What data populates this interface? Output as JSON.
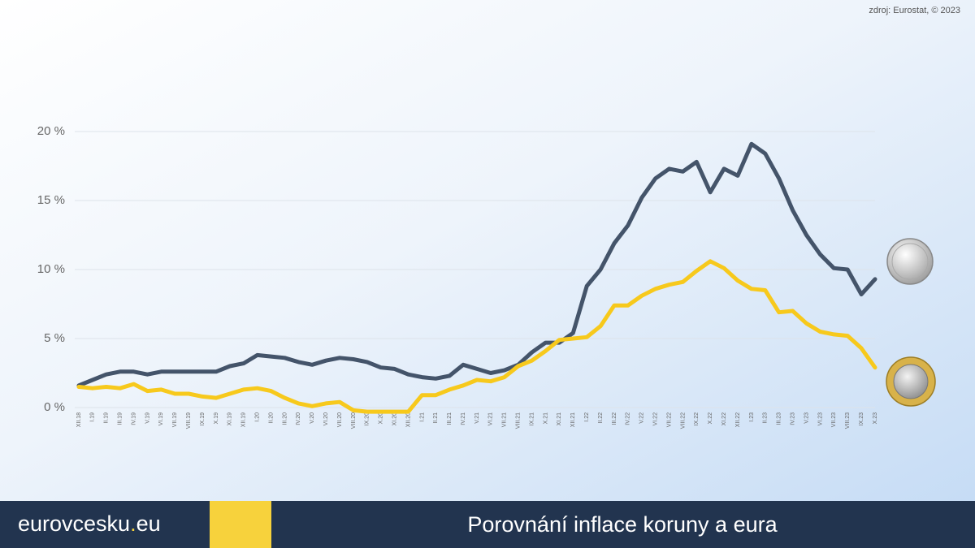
{
  "source": "zdroj: Eurostat, © 2023",
  "footer": {
    "brand": [
      "eurovcesku",
      ".",
      "eu"
    ],
    "title": "Porovnání inflace koruny a eura"
  },
  "chart_data": {
    "type": "line",
    "categories": [
      "XII.18",
      "I.19",
      "II.19",
      "III.19",
      "IV.19",
      "V.19",
      "VI.19",
      "VII.19",
      "VIII.19",
      "IX.19",
      "X.19",
      "XI.19",
      "XII.19",
      "I.20",
      "II.20",
      "III.20",
      "IV.20",
      "V.20",
      "VI.20",
      "VII.20",
      "VIII.20",
      "IX.20",
      "X.20",
      "XI.20",
      "XII.20",
      "I.21",
      "II.21",
      "III.21",
      "IV.21",
      "V.21",
      "VI.21",
      "VII.21",
      "VIII.21",
      "IX.21",
      "X.21",
      "XI.21",
      "XII.21",
      "I.22",
      "II.22",
      "III.22",
      "IV.22",
      "V.22",
      "VI.22",
      "VII.22",
      "VIII.22",
      "IX.22",
      "X.22",
      "XI.22",
      "XII.22",
      "I.23",
      "II.23",
      "III.23",
      "IV.23",
      "V.23",
      "VI.23",
      "VII.23",
      "VIII.23",
      "IX.23",
      "X.23"
    ],
    "series": [
      {
        "color": "#44546a",
        "values": [
          1.6,
          2.0,
          2.4,
          2.6,
          2.6,
          2.4,
          2.6,
          2.6,
          2.6,
          2.6,
          2.6,
          3.0,
          3.2,
          3.8,
          3.7,
          3.6,
          3.3,
          3.1,
          3.4,
          3.6,
          3.5,
          3.3,
          2.9,
          2.8,
          2.4,
          2.2,
          2.1,
          2.3,
          3.1,
          2.8,
          2.5,
          2.7,
          3.1,
          4.0,
          4.7,
          4.7,
          5.4,
          8.8,
          10.0,
          11.9,
          13.2,
          15.2,
          16.6,
          17.3,
          17.1,
          17.8,
          15.6,
          17.3,
          16.8,
          19.1,
          18.4,
          16.6,
          14.3,
          12.5,
          11.1,
          10.1,
          10.0,
          8.2,
          9.3
        ]
      },
      {
        "color": "#f7c91c",
        "values": [
          1.5,
          1.4,
          1.5,
          1.4,
          1.7,
          1.2,
          1.3,
          1.0,
          1.0,
          0.8,
          0.7,
          1.0,
          1.3,
          1.4,
          1.2,
          0.7,
          0.3,
          0.1,
          0.3,
          0.4,
          -0.2,
          -0.3,
          -0.3,
          -0.3,
          -0.3,
          0.9,
          0.9,
          1.3,
          1.6,
          2.0,
          1.9,
          2.2,
          3.0,
          3.4,
          4.1,
          4.9,
          5.0,
          5.1,
          5.9,
          7.4,
          7.4,
          8.1,
          8.6,
          8.9,
          9.1,
          9.9,
          10.6,
          10.1,
          9.2,
          8.6,
          8.5,
          6.9,
          7.0,
          6.1,
          5.5,
          5.3,
          5.2,
          4.3,
          2.9
        ]
      }
    ],
    "ylim": [
      0,
      20
    ],
    "yticks": [
      {
        "value": 0,
        "label": "0 %"
      },
      {
        "value": 5,
        "label": "5 %"
      },
      {
        "value": 10,
        "label": "10 %"
      },
      {
        "value": 15,
        "label": "15 %"
      },
      {
        "value": 20,
        "label": "20 %"
      }
    ],
    "grid": true
  }
}
